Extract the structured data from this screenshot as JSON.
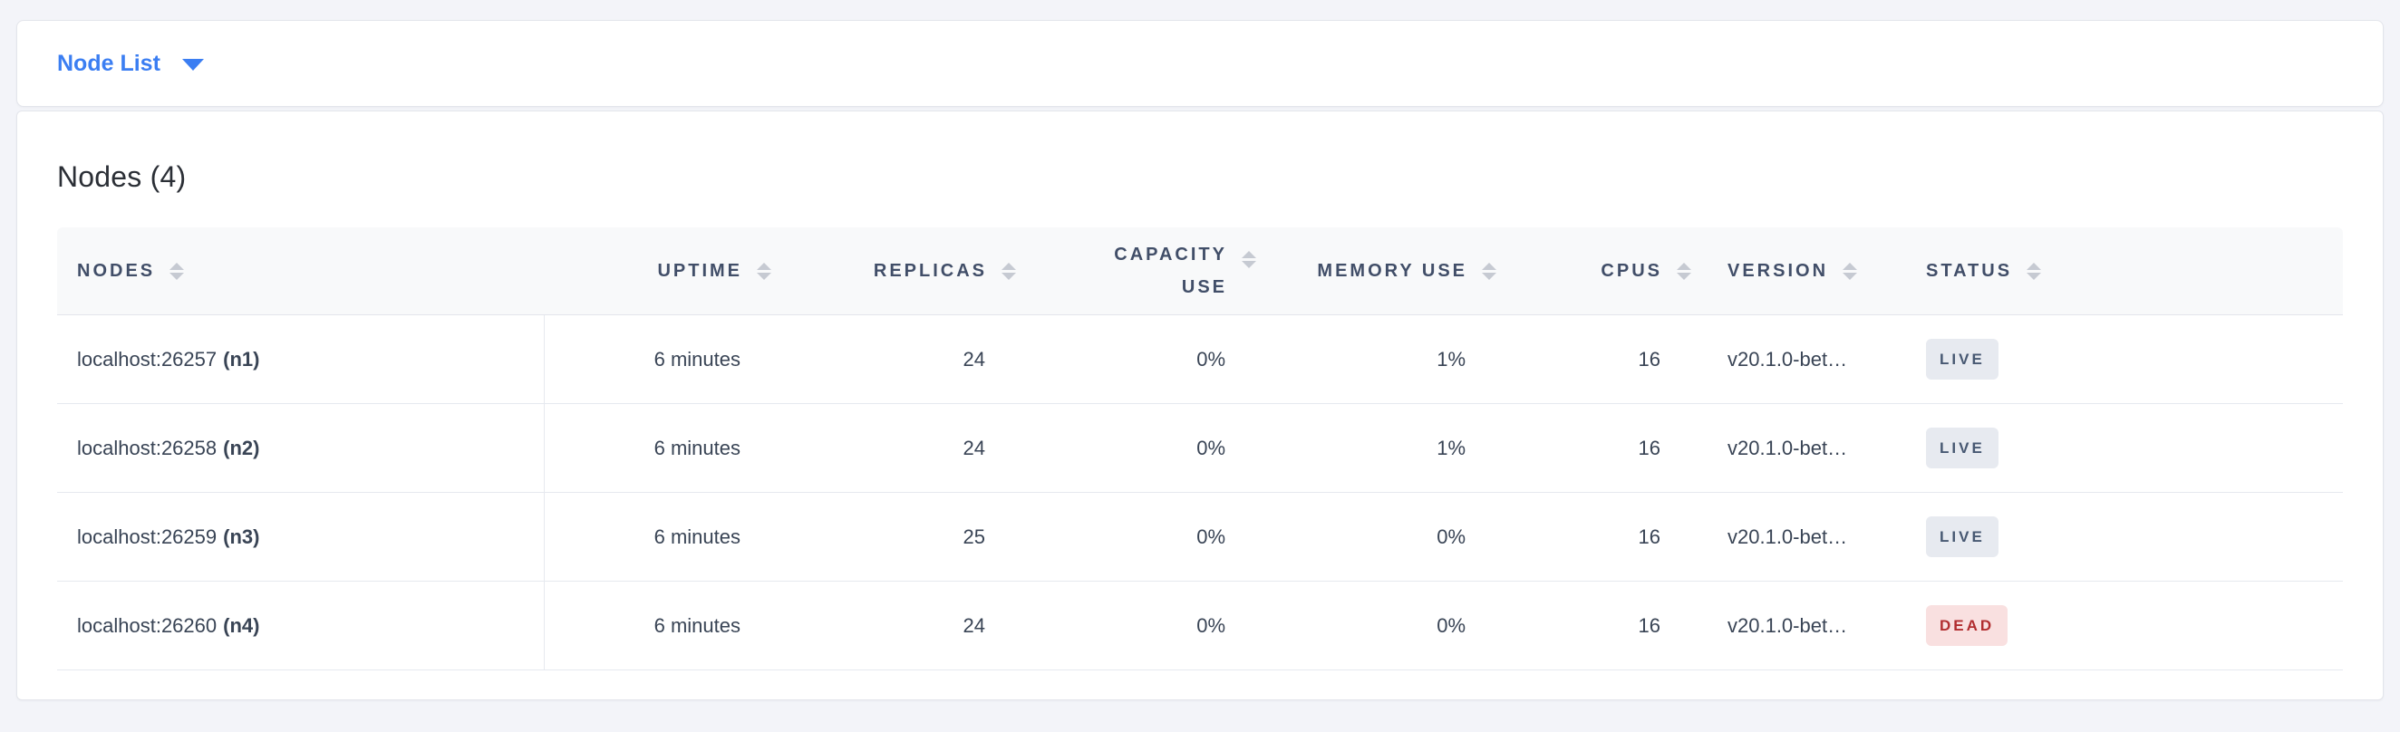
{
  "nav": {
    "dropdown_label": "Node List"
  },
  "page_title": "Nodes (4)",
  "table": {
    "columns": [
      {
        "label": "NODES"
      },
      {
        "label": "UPTIME"
      },
      {
        "label": "REPLICAS"
      },
      {
        "label": "CAPACITY USE"
      },
      {
        "label": "MEMORY USE"
      },
      {
        "label": "CPUS"
      },
      {
        "label": "VERSION"
      },
      {
        "label": "STATUS"
      }
    ],
    "rows": [
      {
        "address": "localhost:26257",
        "node_id": "(n1)",
        "uptime": "6 minutes",
        "replicas": "24",
        "capacity_use": "0%",
        "memory_use": "1%",
        "cpus": "16",
        "version": "v20.1.0-bet…",
        "status": "LIVE"
      },
      {
        "address": "localhost:26258",
        "node_id": "(n2)",
        "uptime": "6 minutes",
        "replicas": "24",
        "capacity_use": "0%",
        "memory_use": "1%",
        "cpus": "16",
        "version": "v20.1.0-bet…",
        "status": "LIVE"
      },
      {
        "address": "localhost:26259",
        "node_id": "(n3)",
        "uptime": "6 minutes",
        "replicas": "25",
        "capacity_use": "0%",
        "memory_use": "0%",
        "cpus": "16",
        "version": "v20.1.0-bet…",
        "status": "LIVE"
      },
      {
        "address": "localhost:26260",
        "node_id": "(n4)",
        "uptime": "6 minutes",
        "replicas": "24",
        "capacity_use": "0%",
        "memory_use": "0%",
        "cpus": "16",
        "version": "v20.1.0-bet…",
        "status": "DEAD"
      }
    ]
  },
  "colors": {
    "page_bg": "#f3f4f9",
    "accent_blue": "#3b7ef2",
    "header_text": "#414e68",
    "body_text": "#394455",
    "live_badge_bg": "#e7eaf0",
    "live_badge_text": "#475872",
    "dead_badge_bg": "#f9e0e0",
    "dead_badge_text": "#b12d2f"
  }
}
